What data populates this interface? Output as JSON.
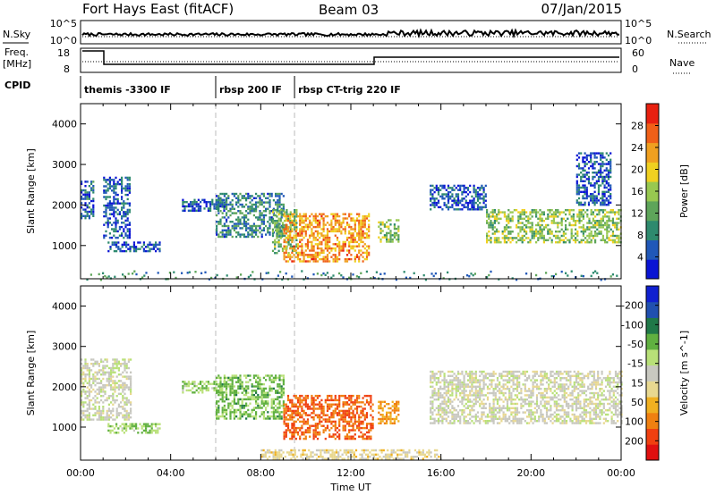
{
  "header": {
    "title": "Fort Hays East (fitACF)",
    "beam": "Beam 03",
    "date": "07/Jan/2015"
  },
  "panels": {
    "nsky_label": "N.Sky",
    "nsearch_label": "N.Search",
    "nsky_ticks": [
      "10^5",
      "10^0"
    ],
    "nsearch_ticks": [
      "10^5",
      "10^0"
    ],
    "freq_label": "Freq.",
    "freq_unit": "[MHz]",
    "freq_ticks": [
      "18",
      "8"
    ],
    "nave_label": "Nave",
    "nave_ticks": [
      "60",
      "0"
    ],
    "cpid_label": "CPID",
    "cpid_segments": [
      {
        "label": "themis -3300 IF",
        "start_hour": 0
      },
      {
        "label": "rbsp 200 IF",
        "start_hour": 6
      },
      {
        "label": "rbsp CT-trig 220 IF",
        "start_hour": 9.5
      }
    ]
  },
  "colors": {
    "power_scale": [
      "#0a14d4",
      "#2058b8",
      "#2e8a6e",
      "#5ea55a",
      "#98c850",
      "#f0d020",
      "#f0a020",
      "#f06018",
      "#e82010"
    ],
    "velocity_scale": [
      "#1020d0",
      "#2050b0",
      "#207848",
      "#60b040",
      "#b8e078",
      "#c8c8c0",
      "#e8d890",
      "#f0b020",
      "#f08010",
      "#f04010",
      "#e01010"
    ],
    "scatter_gray": "#c8c8c0",
    "guide_gray": "#bbbbbb"
  },
  "chart_data": [
    {
      "type": "heatmap",
      "title": "",
      "xlabel": "",
      "ylabel": "Slant Range [km]",
      "xlim": [
        0,
        24
      ],
      "ylim": [
        180,
        4500
      ],
      "x_ticks": [
        "00:00",
        "04:00",
        "08:00",
        "12:00",
        "16:00",
        "20:00",
        "00:00"
      ],
      "y_ticks": [
        1000,
        2000,
        3000,
        4000
      ],
      "colorbar": {
        "label": "Power [dB]",
        "ticks": [
          4,
          8,
          12,
          16,
          20,
          24,
          28
        ],
        "range": [
          0,
          30
        ]
      },
      "regions": [
        {
          "x": [
            0,
            0.6
          ],
          "y": [
            1700,
            2600
          ],
          "value": 6
        },
        {
          "x": [
            1.0,
            2.2
          ],
          "y": [
            1200,
            2700
          ],
          "value": 5
        },
        {
          "x": [
            1.2,
            3.5
          ],
          "y": [
            850,
            1100
          ],
          "value": 5
        },
        {
          "x": [
            4.5,
            6.5
          ],
          "y": [
            1850,
            2150
          ],
          "value": 5
        },
        {
          "x": [
            6.0,
            9.0
          ],
          "y": [
            1200,
            2300
          ],
          "value": 8
        },
        {
          "x": [
            8.5,
            9.6
          ],
          "y": [
            800,
            1900
          ],
          "value": 12
        },
        {
          "x": [
            9.0,
            12.8
          ],
          "y": [
            600,
            1800
          ],
          "value": 22
        },
        {
          "x": [
            13.2,
            14.1
          ],
          "y": [
            1100,
            1650
          ],
          "value": 14
        },
        {
          "x": [
            15.5,
            18.0
          ],
          "y": [
            1900,
            2500
          ],
          "value": 5
        },
        {
          "x": [
            18.0,
            24.0
          ],
          "y": [
            1100,
            1900
          ],
          "value": 14
        },
        {
          "x": [
            22.0,
            23.5
          ],
          "y": [
            2000,
            3300
          ],
          "value": 5
        }
      ]
    },
    {
      "type": "heatmap",
      "title": "",
      "xlabel": "Time UT",
      "ylabel": "Slant Range [km]",
      "xlim": [
        0,
        24
      ],
      "ylim": [
        180,
        4500
      ],
      "x_ticks": [
        "00:00",
        "04:00",
        "08:00",
        "12:00",
        "16:00",
        "20:00",
        "00:00"
      ],
      "y_ticks": [
        1000,
        2000,
        3000,
        4000
      ],
      "colorbar": {
        "label": "Velocity [m s^-1]",
        "ticks": [
          200,
          100,
          50,
          15,
          -15,
          -50,
          -100,
          -200
        ],
        "range": [
          -250,
          250
        ]
      },
      "regions": [
        {
          "x": [
            0,
            2.2
          ],
          "y": [
            1200,
            2700
          ],
          "value": 5
        },
        {
          "x": [
            1.2,
            3.5
          ],
          "y": [
            850,
            1100
          ],
          "value": 60
        },
        {
          "x": [
            4.5,
            6.5
          ],
          "y": [
            1850,
            2150
          ],
          "value": 60
        },
        {
          "x": [
            6.0,
            9.0
          ],
          "y": [
            1200,
            2300
          ],
          "value": 80
        },
        {
          "x": [
            9.0,
            13.0
          ],
          "y": [
            700,
            1800
          ],
          "value": -160
        },
        {
          "x": [
            13.2,
            14.1
          ],
          "y": [
            1100,
            1650
          ],
          "value": -120
        },
        {
          "x": [
            15.5,
            24.0
          ],
          "y": [
            1100,
            2400
          ],
          "value": 0
        },
        {
          "x": [
            8.0,
            16.0
          ],
          "y": [
            200,
            450
          ],
          "value": -40
        }
      ]
    }
  ]
}
